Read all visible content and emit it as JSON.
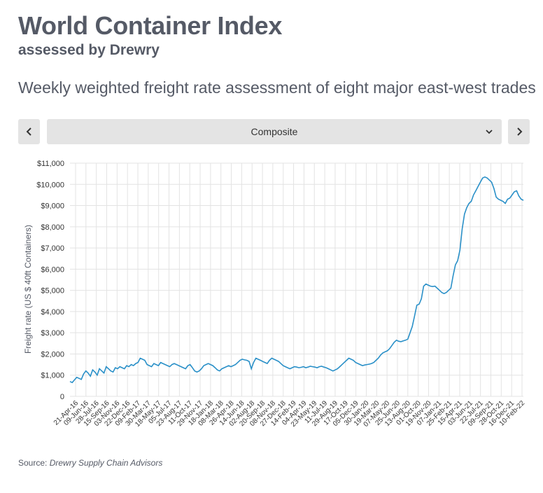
{
  "header": {
    "title": "World Container Index",
    "subtitle": "assessed by Drewry",
    "description": "Weekly weighted freight rate assessment of eight major east-west trades"
  },
  "controls": {
    "prev_icon": "chevron-left-icon",
    "next_icon": "chevron-right-icon",
    "dropdown_icon": "chevron-down-icon",
    "selected": "Composite"
  },
  "source": {
    "label": "Source:",
    "text": "Drewry Supply Chain Advisors"
  },
  "chart_data": {
    "type": "line",
    "ylabel": "Freight rate (US $ 40ft Containers)",
    "ylim": [
      0,
      11000
    ],
    "yticks": [
      0,
      1000,
      2000,
      3000,
      4000,
      5000,
      6000,
      7000,
      8000,
      9000,
      10000,
      11000
    ],
    "ytick_labels": [
      "0",
      "$1,000",
      "$2,000",
      "$3,000",
      "$4,000",
      "$5,000",
      "$6,000",
      "$7,000",
      "$8,000",
      "$9,000",
      "$10,000",
      "$11,000"
    ],
    "xtick_labels": [
      "21-Apr-16",
      "09-Jun-16",
      "28-Jul-16",
      "15-Sep-16",
      "03-Nov-16",
      "22-Dec-16",
      "09-Feb-17",
      "30-Mar-17",
      "18-May-17",
      "05-Jul-17",
      "23-Aug-17",
      "11-Oct-17",
      "29-Nov-17",
      "18-Jan-18",
      "08-Mar-18",
      "26-Apr-18",
      "14-Jun-18",
      "02-Aug-18",
      "20-Sep-18",
      "08-Nov-18",
      "27-Dec-18",
      "14-Feb-19",
      "04-Apr-19",
      "23-May-19",
      "11-Jul-19",
      "29-Aug-19",
      "17-Oct-19",
      "05-Dec-19",
      "30-Jan-20",
      "19-Mar-20",
      "07-May-20",
      "25-Jun-20",
      "13-Aug-20",
      "01-Oct-20",
      "19-Nov-20",
      "07-Jan-21",
      "25-Feb-21",
      "15-Apr-21",
      "03-Jun-21",
      "22-Jul-21",
      "09-Sep-21",
      "28-Oct-21",
      "16-Dec-21",
      "10-Feb-22"
    ],
    "grid": true,
    "line_color": "#2a90c8",
    "series": [
      {
        "name": "",
        "values": [
          700,
          650,
          780,
          900,
          850,
          800,
          1050,
          1200,
          1100,
          950,
          1250,
          1150,
          1000,
          1300,
          1200,
          1100,
          1400,
          1300,
          1200,
          1150,
          1350,
          1300,
          1400,
          1350,
          1300,
          1450,
          1400,
          1500,
          1450,
          1550,
          1600,
          1800,
          1750,
          1700,
          1500,
          1450,
          1400,
          1550,
          1500,
          1450,
          1600,
          1550,
          1500,
          1450,
          1400,
          1500,
          1550,
          1500,
          1450,
          1400,
          1350,
          1300,
          1450,
          1500,
          1350,
          1200,
          1150,
          1200,
          1300,
          1450,
          1500,
          1550,
          1500,
          1450,
          1350,
          1250,
          1200,
          1300,
          1350,
          1400,
          1450,
          1400,
          1450,
          1500,
          1600,
          1700,
          1750,
          1720,
          1700,
          1650,
          1300,
          1600,
          1800,
          1750,
          1700,
          1650,
          1600,
          1550,
          1700,
          1800,
          1750,
          1700,
          1650,
          1550,
          1450,
          1400,
          1350,
          1300,
          1350,
          1400,
          1380,
          1350,
          1370,
          1400,
          1350,
          1380,
          1420,
          1400,
          1380,
          1350,
          1400,
          1420,
          1380,
          1350,
          1300,
          1250,
          1200,
          1250,
          1300,
          1400,
          1500,
          1600,
          1700,
          1800,
          1750,
          1700,
          1600,
          1550,
          1500,
          1450,
          1480,
          1500,
          1520,
          1550,
          1600,
          1700,
          1800,
          1950,
          2050,
          2100,
          2150,
          2250,
          2400,
          2550,
          2650,
          2600,
          2580,
          2620,
          2650,
          2700,
          3000,
          3300,
          3800,
          4300,
          4350,
          4600,
          5200,
          5300,
          5250,
          5200,
          5180,
          5200,
          5100,
          5000,
          4900,
          4850,
          4900,
          5000,
          5100,
          5700,
          6200,
          6400,
          6900,
          7900,
          8600,
          8900,
          9100,
          9200,
          9500,
          9700,
          9900,
          10100,
          10300,
          10350,
          10300,
          10200,
          10100,
          9800,
          9400,
          9300,
          9250,
          9200,
          9100,
          9300,
          9350,
          9500,
          9650,
          9700,
          9450,
          9300,
          9250
        ]
      }
    ]
  }
}
